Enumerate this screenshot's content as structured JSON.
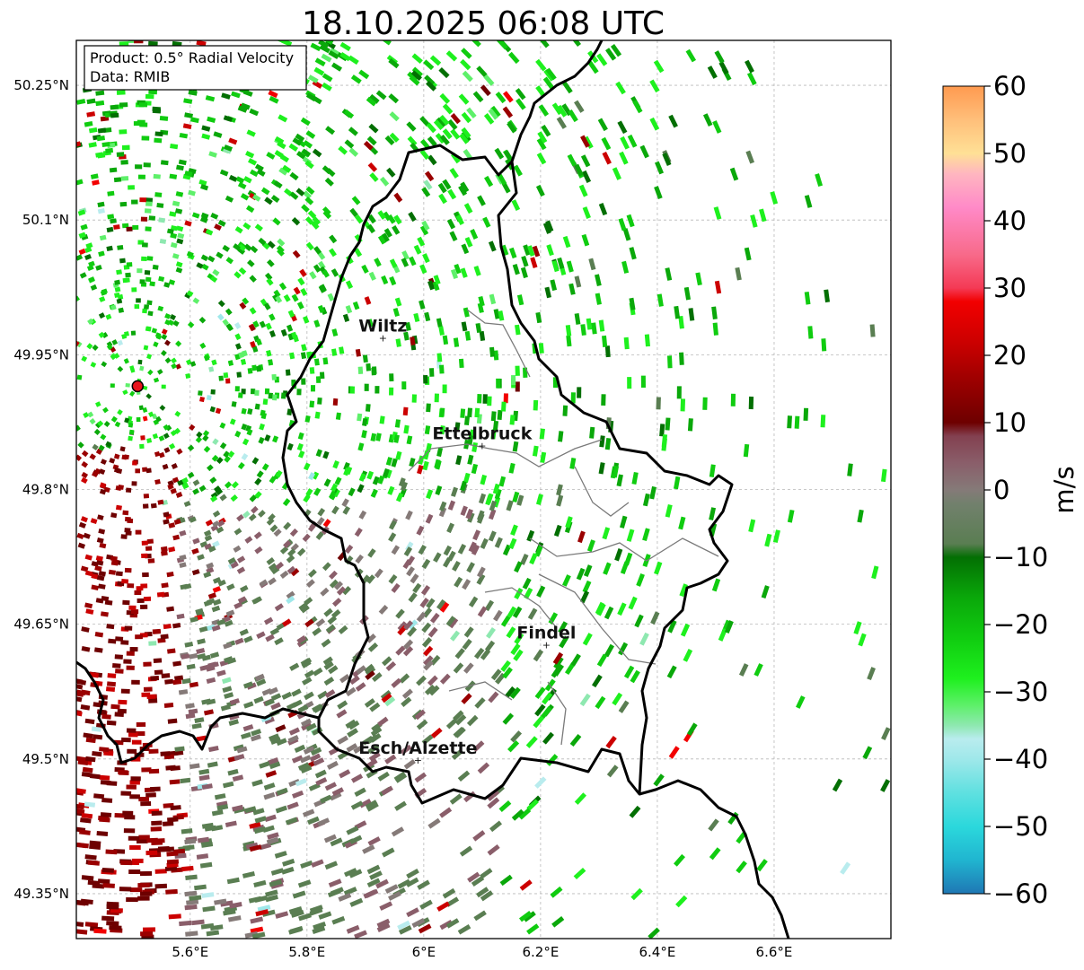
{
  "title": "18.10.2025 06:08 UTC",
  "info_box": {
    "product": "Product: 0.5° Radial Velocity",
    "data": "Data: RMIB"
  },
  "map": {
    "lon_range": [
      5.405,
      6.8
    ],
    "lat_range": [
      49.3,
      50.3
    ],
    "x_ticks": [
      {
        "value": 5.6,
        "label": "5.6°E"
      },
      {
        "value": 5.8,
        "label": "5.8°E"
      },
      {
        "value": 6.0,
        "label": "6°E"
      },
      {
        "value": 6.2,
        "label": "6.2°E"
      },
      {
        "value": 6.4,
        "label": "6.4°E"
      },
      {
        "value": 6.6,
        "label": "6.6°E"
      }
    ],
    "y_ticks": [
      {
        "value": 50.25,
        "label": "50.25°N"
      },
      {
        "value": 50.1,
        "label": "50.1°N"
      },
      {
        "value": 49.95,
        "label": "49.95°N"
      },
      {
        "value": 49.8,
        "label": "49.8°N"
      },
      {
        "value": 49.65,
        "label": "49.65°N"
      },
      {
        "value": 49.5,
        "label": "49.5°N"
      },
      {
        "value": 49.35,
        "label": "49.35°N"
      }
    ],
    "gridlines": true,
    "radar_site": {
      "lon": 5.51,
      "lat": 49.915,
      "color": "#e8141e"
    },
    "cities": [
      {
        "name": "Wiltz",
        "lon": 5.93,
        "lat": 49.97
      },
      {
        "name": "Ettelbruck",
        "lon": 6.1,
        "lat": 49.85
      },
      {
        "name": "Findel",
        "lon": 6.21,
        "lat": 49.628
      },
      {
        "name": "Esch/Alzette",
        "lon": 5.99,
        "lat": 49.5
      }
    ]
  },
  "colorbar": {
    "label": "m/s",
    "range": [
      -60,
      60
    ],
    "ticks": [
      {
        "value": 60,
        "label": "60"
      },
      {
        "value": 50,
        "label": "50"
      },
      {
        "value": 40,
        "label": "40"
      },
      {
        "value": 30,
        "label": "30"
      },
      {
        "value": 20,
        "label": "20"
      },
      {
        "value": 10,
        "label": "10"
      },
      {
        "value": 0,
        "label": "0"
      },
      {
        "value": -10,
        "label": "−10"
      },
      {
        "value": -20,
        "label": "−20"
      },
      {
        "value": -30,
        "label": "−30"
      },
      {
        "value": -40,
        "label": "−40"
      },
      {
        "value": -50,
        "label": "−50"
      },
      {
        "value": -60,
        "label": "−60"
      }
    ],
    "stops": [
      {
        "v": -60,
        "color": "#1f77b4"
      },
      {
        "v": -55,
        "color": "#20b5d0"
      },
      {
        "v": -50,
        "color": "#2bd8dc"
      },
      {
        "v": -45,
        "color": "#5fe0e0"
      },
      {
        "v": -40,
        "color": "#9fe8ea"
      },
      {
        "v": -37,
        "color": "#b9ecee"
      },
      {
        "v": -35,
        "color": "#8ee8b0"
      },
      {
        "v": -32,
        "color": "#5ef06a"
      },
      {
        "v": -28,
        "color": "#1ef01e"
      },
      {
        "v": -22,
        "color": "#10cc10"
      },
      {
        "v": -16,
        "color": "#0aa80a"
      },
      {
        "v": -10,
        "color": "#036f03"
      },
      {
        "v": -8,
        "color": "#5a7e52"
      },
      {
        "v": -2,
        "color": "#72806d"
      },
      {
        "v": 0,
        "color": "#857a78"
      },
      {
        "v": 4,
        "color": "#8a5e6a"
      },
      {
        "v": 8,
        "color": "#834050"
      },
      {
        "v": 10,
        "color": "#6e0000"
      },
      {
        "v": 16,
        "color": "#9a0000"
      },
      {
        "v": 22,
        "color": "#cc0000"
      },
      {
        "v": 28,
        "color": "#f20000"
      },
      {
        "v": 30,
        "color": "#f43a55"
      },
      {
        "v": 35,
        "color": "#f86a8a"
      },
      {
        "v": 42,
        "color": "#ff8ac8"
      },
      {
        "v": 47,
        "color": "#ffb6c0"
      },
      {
        "v": 50,
        "color": "#ffe096"
      },
      {
        "v": 55,
        "color": "#ffbf7a"
      },
      {
        "v": 60,
        "color": "#ff9a50"
      }
    ]
  }
}
